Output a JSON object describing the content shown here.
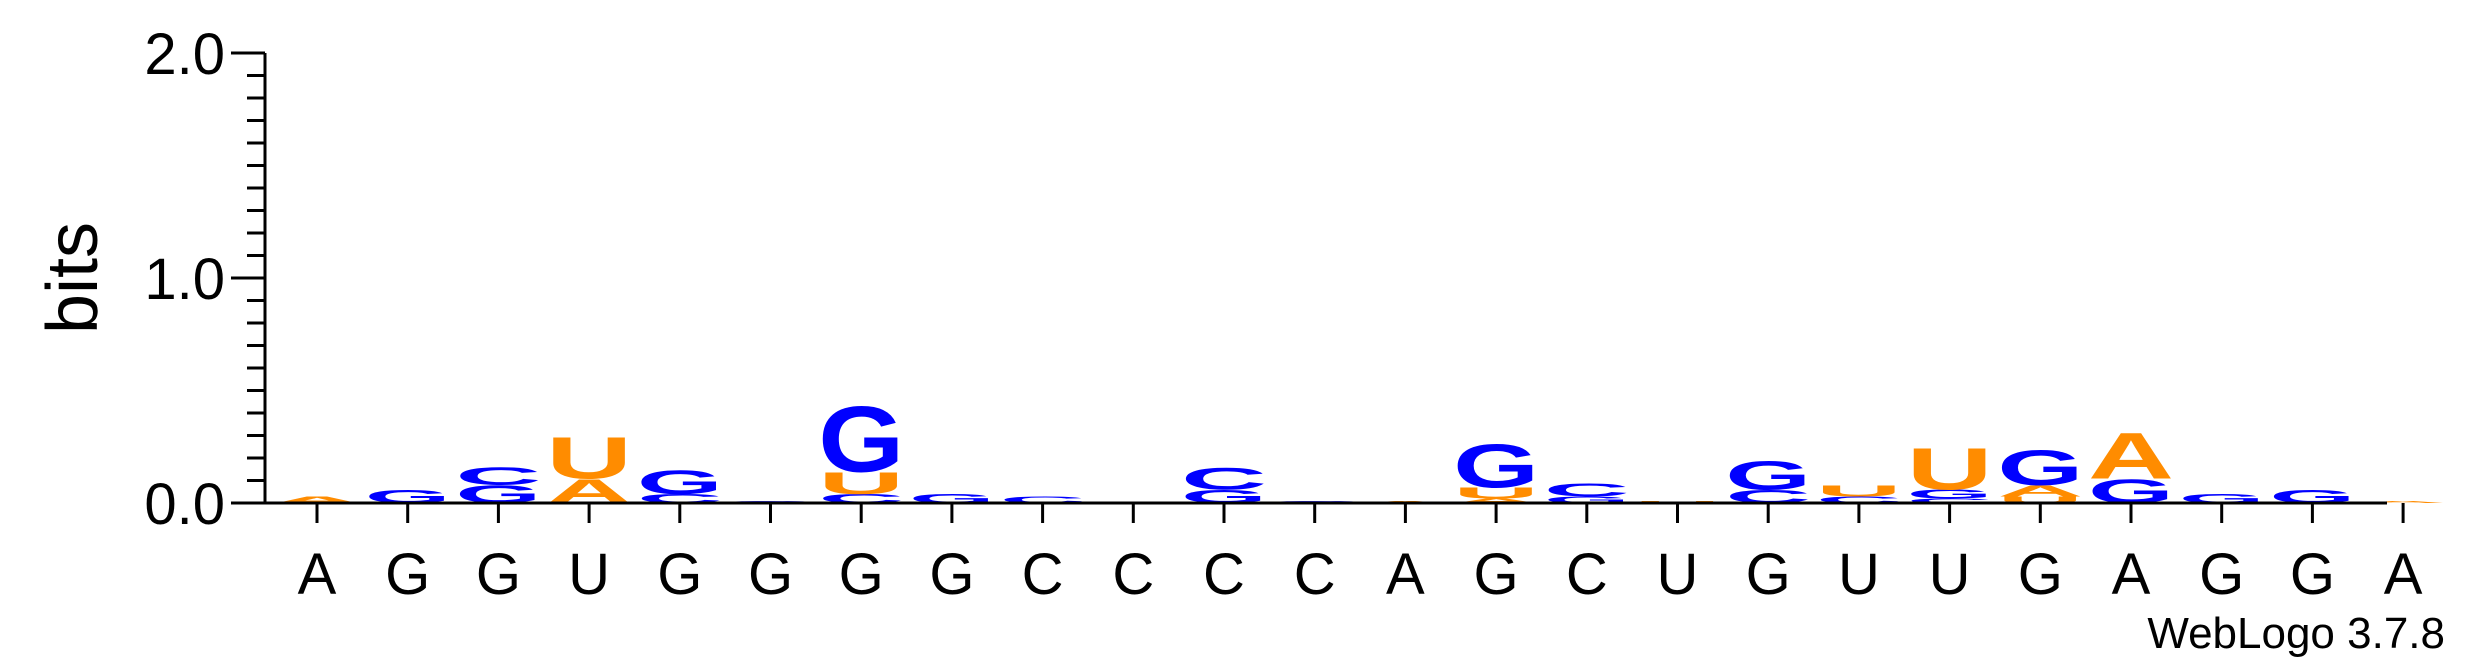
{
  "chart_data": {
    "type": "sequence-logo",
    "ylabel": "bits",
    "ylim": [
      0,
      2
    ],
    "yticks": [
      "0.0",
      "1.0",
      "2.0"
    ],
    "positions": [
      "A",
      "G",
      "G",
      "U",
      "G",
      "G",
      "G",
      "G",
      "C",
      "C",
      "C",
      "C",
      "A",
      "G",
      "C",
      "U",
      "G",
      "U",
      "U",
      "G",
      "A",
      "G",
      "G",
      "A"
    ],
    "colors": {
      "A": "#ff8c00",
      "U": "#ff8c00",
      "G": "#0000ff",
      "C": "#0000ff"
    },
    "stacks": [
      [
        [
          "A",
          0.03
        ]
      ],
      [
        [
          "G",
          0.06
        ]
      ],
      [
        [
          "G",
          0.08
        ],
        [
          "C",
          0.08
        ]
      ],
      [
        [
          "A",
          0.11
        ],
        [
          "U",
          0.19
        ]
      ],
      [
        [
          "C",
          0.04
        ],
        [
          "G",
          0.11
        ]
      ],
      [
        [
          "G",
          0.01
        ]
      ],
      [
        [
          "C",
          0.04
        ],
        [
          "U",
          0.1
        ],
        [
          "G",
          0.3
        ]
      ],
      [
        [
          "G",
          0.04
        ]
      ],
      [
        [
          "C",
          0.03
        ]
      ],
      [],
      [
        [
          "G",
          0.06
        ],
        [
          "C",
          0.1
        ]
      ],
      [
        [
          "C",
          0.01
        ]
      ],
      [
        [
          "A",
          0.01
        ]
      ],
      [
        [
          "A",
          0.02
        ],
        [
          "U",
          0.05
        ],
        [
          "G",
          0.2
        ]
      ],
      [
        [
          "G",
          0.03
        ],
        [
          "C",
          0.06
        ]
      ],
      [
        [
          "U",
          0.01
        ]
      ],
      [
        [
          "C",
          0.06
        ],
        [
          "G",
          0.13
        ]
      ],
      [
        [
          "C",
          0.03
        ],
        [
          "U",
          0.05
        ]
      ],
      [
        [
          "C",
          0.02
        ],
        [
          "G",
          0.04
        ],
        [
          "U",
          0.19
        ]
      ],
      [
        [
          "U",
          0.03
        ],
        [
          "A",
          0.05
        ],
        [
          "G",
          0.16
        ]
      ],
      [
        [
          "G",
          0.11
        ],
        [
          "A",
          0.21
        ]
      ],
      [
        [
          "G",
          0.04
        ]
      ],
      [
        [
          "G",
          0.06
        ]
      ],
      [
        [
          "A",
          0.01
        ]
      ]
    ],
    "credit": "WebLogo 3.7.8"
  }
}
